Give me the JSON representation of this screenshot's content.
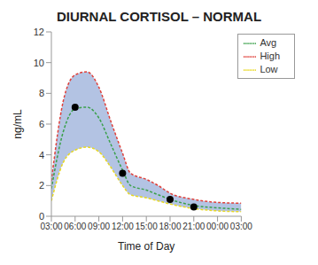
{
  "chart_data": {
    "type": "line",
    "title": "DIURNAL CORTISOL – NORMAL",
    "x_label": "Time of Day",
    "y_label": "ng/mL",
    "x": [
      3,
      4.5,
      6,
      7.5,
      9,
      10.5,
      12,
      13,
      15,
      16.5,
      18,
      21,
      24,
      27
    ],
    "series": [
      {
        "name": "High",
        "color": "#e0403a",
        "line_style": "dashed",
        "values": [
          2.3,
          7.5,
          9.2,
          9.4,
          8.4,
          6.2,
          4.1,
          2.8,
          2.4,
          2.0,
          1.5,
          1.1,
          0.9,
          0.85
        ]
      },
      {
        "name": "Avg",
        "color": "#3aa04a",
        "line_style": "dashed",
        "values": [
          1.8,
          5.5,
          7.0,
          7.1,
          6.4,
          4.7,
          3.0,
          2.0,
          1.7,
          1.4,
          1.1,
          0.7,
          0.55,
          0.45
        ]
      },
      {
        "name": "Low",
        "color": "#e8d820",
        "line_style": "dashed",
        "values": [
          1.0,
          3.5,
          4.3,
          4.5,
          4.2,
          3.2,
          2.0,
          1.4,
          1.2,
          1.0,
          0.8,
          0.5,
          0.35,
          0.3
        ]
      }
    ],
    "band": {
      "between": [
        "Low",
        "High"
      ],
      "color": "#b3c3e3"
    },
    "points": {
      "x": [
        6,
        12,
        18,
        21
      ],
      "values": [
        7.1,
        2.8,
        1.1,
        0.6
      ],
      "color": "#000000"
    },
    "xlim": [
      3,
      27
    ],
    "xticks": [
      {
        "value": 3,
        "label": "03:00"
      },
      {
        "value": 6,
        "label": "06:00"
      },
      {
        "value": 9,
        "label": "09:00"
      },
      {
        "value": 12,
        "label": "12:00"
      },
      {
        "value": 15,
        "label": "15:00"
      },
      {
        "value": 18,
        "label": "18:00"
      },
      {
        "value": 21,
        "label": "21:00"
      },
      {
        "value": 24,
        "label": "00:00"
      },
      {
        "value": 27,
        "label": "03:00"
      }
    ],
    "ylim": [
      0,
      12
    ],
    "yticks": [
      0,
      2,
      4,
      6,
      8,
      10,
      12
    ],
    "grid": false,
    "legend": "top-right"
  }
}
